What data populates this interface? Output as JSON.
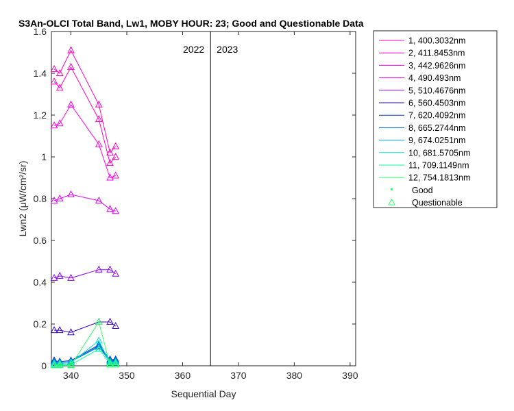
{
  "chart_data": {
    "type": "line",
    "title": "S3An-OLCI Total Band, Lw1, MOBY HOUR: 23;  Good and Questionable Data",
    "xlabel": "Sequential Day",
    "ylabel": "Lwn2 (μW/cm²/sr)",
    "xlim": [
      336.5,
      391
    ],
    "ylim": [
      0,
      1.6
    ],
    "xticks": [
      340,
      350,
      360,
      370,
      380,
      390
    ],
    "yticks": [
      0,
      0.2,
      0.4,
      0.6,
      0.8,
      1,
      1.2,
      1.4,
      1.6
    ],
    "ytick_labels": [
      "0",
      "0.2",
      "0.4",
      "0.6",
      "0.8",
      "1",
      "1.2",
      "1.4",
      "1.6"
    ],
    "grid": false,
    "legend_position": "outside-right",
    "year_divider": {
      "x": 365,
      "left_label": "2022",
      "right_label": "2023"
    },
    "x": [
      337,
      338,
      340,
      345,
      347,
      348
    ],
    "runs": [
      {
        "x": [
          337,
          338,
          340,
          345,
          347,
          348
        ],
        "series": [
          {
            "name": "1, 400.3032nm",
            "color": "#ff00bf",
            "values": [
              1.36,
              1.33,
              1.43,
              1.18,
              0.97,
              1.0
            ]
          },
          {
            "name": "2, 411.8453nm",
            "color": "#ff00bf",
            "values": [
              1.42,
              1.4,
              1.51,
              1.25,
              1.02,
              1.05
            ]
          },
          {
            "name": "3, 442.9626nm",
            "color": "#ff00e6",
            "values": [
              1.15,
              1.16,
              1.25,
              1.06,
              0.9,
              0.91
            ]
          },
          {
            "name": "4,  490.493nm",
            "color": "#e600ff",
            "values": [
              0.79,
              0.8,
              0.82,
              0.79,
              0.75,
              0.74
            ]
          },
          {
            "name": "5, 510.4676nm",
            "color": "#8c00ff",
            "values": [
              0.42,
              0.43,
              0.42,
              0.46,
              0.46,
              0.44
            ]
          },
          {
            "name": "6, 560.4503nm",
            "color": "#3300cc",
            "values": [
              0.17,
              0.17,
              0.16,
              0.21,
              0.21,
              0.19
            ]
          },
          {
            "name": "7, 620.4092nm",
            "color": "#0033cc",
            "values": [
              0.025,
              0.02,
              0.025,
              0.1,
              0.03,
              0.03
            ]
          },
          {
            "name": "8, 665.2744nm",
            "color": "#0066cc",
            "values": [
              0.02,
              0.015,
              0.02,
              0.095,
              0.025,
              0.025
            ]
          },
          {
            "name": "9, 674.0251nm",
            "color": "#0099e6",
            "values": [
              0.015,
              0.015,
              0.02,
              0.09,
              0.02,
              0.02
            ]
          },
          {
            "name": "10, 681.5705nm",
            "color": "#00e6cc",
            "values": [
              0.01,
              0.01,
              0.015,
              0.12,
              0.015,
              0.015
            ]
          },
          {
            "name": "11, 709.1149nm",
            "color": "#00ff99",
            "values": [
              0.005,
              0.005,
              0.005,
              0.08,
              0.01,
              0.01
            ]
          },
          {
            "name": "12, 754.1813nm",
            "color": "#33ff66",
            "values": [
              0.002,
              0.002,
              0.002,
              0.21,
              0.005,
              0.005
            ]
          }
        ]
      }
    ],
    "marker_legend": [
      {
        "name": "Good",
        "marker": "point",
        "color": "#33ff66"
      },
      {
        "name": "Questionable",
        "marker": "triangle",
        "color": "#33ff66"
      }
    ]
  }
}
